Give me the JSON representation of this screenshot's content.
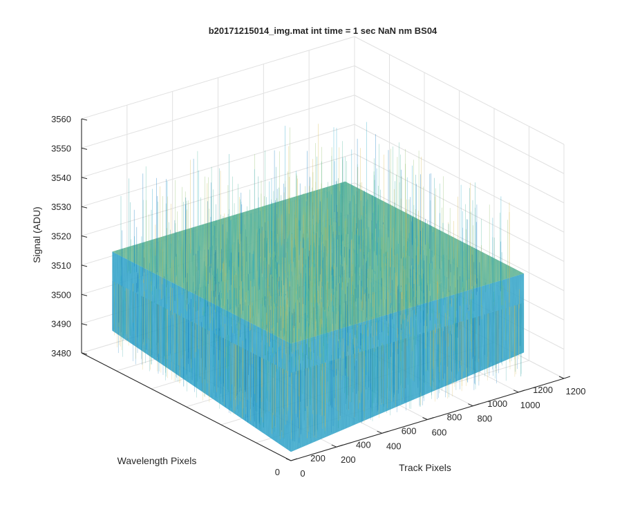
{
  "chart_data": {
    "type": "surface",
    "title": "b20171215014_img.mat int time = 1 sec  NaN nm BS04",
    "xlabel": "Track Pixels",
    "ylabel": "Wavelength Pixels",
    "zlabel": "Signal (ADU)",
    "xlim": [
      0,
      1200
    ],
    "ylim": [
      0,
      1200
    ],
    "zlim": [
      3480,
      3560
    ],
    "x_ticks": [
      "0",
      "200",
      "400",
      "600",
      "800",
      "1000",
      "1200"
    ],
    "y_ticks": [
      "0",
      "200",
      "400",
      "600",
      "800",
      "1000",
      "1200"
    ],
    "z_ticks": [
      "3480",
      "3490",
      "3500",
      "3510",
      "3520",
      "3530",
      "3540",
      "3550",
      "3560"
    ],
    "data_extent": {
      "x_max": 1024,
      "y_max": 1024
    },
    "signal": {
      "mean": 3510,
      "approx_min": 3485,
      "approx_max": 3548
    },
    "grid": true,
    "colormap": "parula",
    "colors": {
      "low": "#0072bd",
      "mid": "#2aa2a0",
      "high": "#d8b84a",
      "axis": "#262626",
      "grid": "#e0e0e0"
    }
  }
}
